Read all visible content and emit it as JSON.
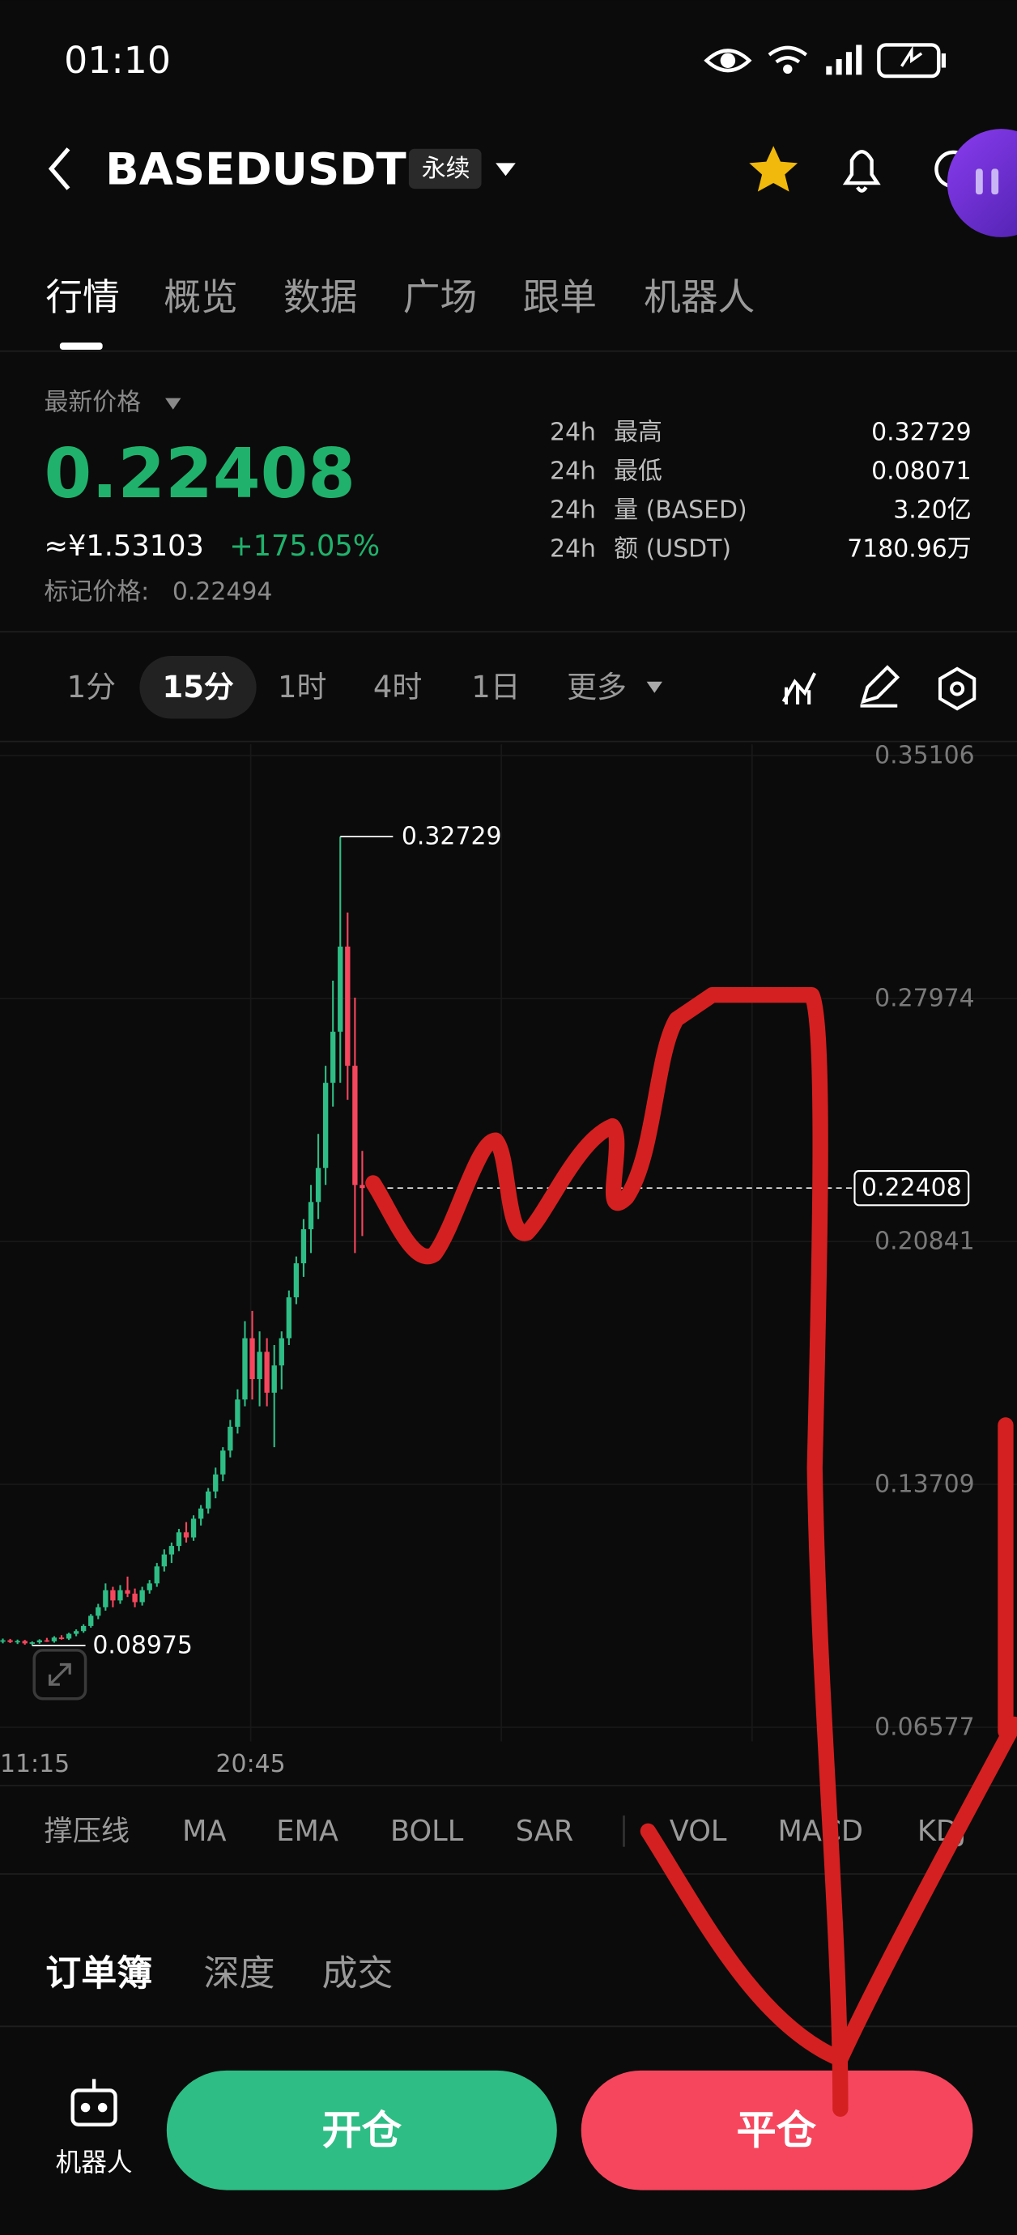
{
  "status_bar": {
    "time": "01:10"
  },
  "header": {
    "symbol": "BASEDUSDT",
    "contract_type": "永续"
  },
  "tabs": [
    "行情",
    "概览",
    "数据",
    "广场",
    "跟单",
    "机器人"
  ],
  "ticker": {
    "price_label": "最新价格",
    "price": "0.22408",
    "cny": "≈¥1.53103",
    "change": "+175.05%",
    "mark_price_label": "标记价格:",
    "mark_price": "0.22494",
    "stats": [
      {
        "period": "24h",
        "label": "最高",
        "value": "0.32729"
      },
      {
        "period": "24h",
        "label": "最低",
        "value": "0.08071"
      },
      {
        "period": "24h",
        "label": "量 (BASED)",
        "value": "3.20亿"
      },
      {
        "period": "24h",
        "label": "额 (USDT)",
        "value": "7180.96万"
      }
    ]
  },
  "intervals": {
    "items": [
      "1分",
      "15分",
      "1时",
      "4时",
      "1日",
      "更多"
    ],
    "selected": 1
  },
  "chart_data": {
    "type": "candlestick",
    "ylim": [
      0.0616,
      0.3544
    ],
    "yticks": [
      0.35106,
      0.27974,
      0.20841,
      0.13709,
      0.06577
    ],
    "x_labels": [
      "11:15",
      "20:45"
    ],
    "up_color": "#2ebd85",
    "down_color": "#f6465d",
    "last_price": 0.22408,
    "high_marker": 0.32729,
    "low_marker": 0.08975,
    "candles": [
      [
        0.091,
        0.0918,
        0.0904,
        0.0913
      ],
      [
        0.0913,
        0.0917,
        0.0905,
        0.0908
      ],
      [
        0.0908,
        0.0915,
        0.0902,
        0.0911
      ],
      [
        0.0911,
        0.0914,
        0.09,
        0.0904
      ],
      [
        0.0904,
        0.091,
        0.08975,
        0.0907
      ],
      [
        0.0907,
        0.0916,
        0.0903,
        0.0913
      ],
      [
        0.0913,
        0.092,
        0.0908,
        0.091
      ],
      [
        0.091,
        0.0925,
        0.0906,
        0.0921
      ],
      [
        0.0921,
        0.0928,
        0.0915,
        0.0918
      ],
      [
        0.0918,
        0.0935,
        0.0914,
        0.0932
      ],
      [
        0.0932,
        0.0945,
        0.0925,
        0.094
      ],
      [
        0.094,
        0.096,
        0.0935,
        0.0955
      ],
      [
        0.0955,
        0.099,
        0.095,
        0.0985
      ],
      [
        0.0985,
        0.102,
        0.0975,
        0.101
      ],
      [
        0.101,
        0.108,
        0.1,
        0.106
      ],
      [
        0.106,
        0.107,
        0.101,
        0.103
      ],
      [
        0.103,
        0.1075,
        0.102,
        0.106
      ],
      [
        0.106,
        0.11,
        0.104,
        0.105
      ],
      [
        0.105,
        0.1065,
        0.101,
        0.1025
      ],
      [
        0.1025,
        0.107,
        0.1015,
        0.106
      ],
      [
        0.106,
        0.109,
        0.105,
        0.108
      ],
      [
        0.108,
        0.114,
        0.107,
        0.113
      ],
      [
        0.113,
        0.118,
        0.1115,
        0.1165
      ],
      [
        0.1165,
        0.12,
        0.114,
        0.119
      ],
      [
        0.119,
        0.124,
        0.1175,
        0.123
      ],
      [
        0.123,
        0.126,
        0.12,
        0.1215
      ],
      [
        0.1215,
        0.128,
        0.1205,
        0.127
      ],
      [
        0.127,
        0.131,
        0.125,
        0.13
      ],
      [
        0.13,
        0.136,
        0.1285,
        0.135
      ],
      [
        0.135,
        0.142,
        0.133,
        0.14
      ],
      [
        0.14,
        0.148,
        0.138,
        0.147
      ],
      [
        0.147,
        0.156,
        0.145,
        0.154
      ],
      [
        0.154,
        0.165,
        0.152,
        0.162
      ],
      [
        0.162,
        0.185,
        0.16,
        0.18
      ],
      [
        0.18,
        0.188,
        0.162,
        0.168
      ],
      [
        0.168,
        0.182,
        0.16,
        0.176
      ],
      [
        0.176,
        0.18,
        0.16,
        0.164
      ],
      [
        0.164,
        0.178,
        0.148,
        0.172
      ],
      [
        0.172,
        0.182,
        0.165,
        0.18
      ],
      [
        0.18,
        0.194,
        0.178,
        0.192
      ],
      [
        0.192,
        0.204,
        0.19,
        0.202
      ],
      [
        0.202,
        0.215,
        0.198,
        0.212
      ],
      [
        0.212,
        0.225,
        0.205,
        0.22
      ],
      [
        0.22,
        0.24,
        0.215,
        0.23
      ],
      [
        0.23,
        0.26,
        0.225,
        0.255
      ],
      [
        0.255,
        0.285,
        0.248,
        0.27
      ],
      [
        0.27,
        0.32729,
        0.255,
        0.295
      ],
      [
        0.295,
        0.305,
        0.25,
        0.26
      ],
      [
        0.26,
        0.28,
        0.205,
        0.225
      ],
      [
        0.225,
        0.235,
        0.21,
        0.22408
      ]
    ]
  },
  "indicators": [
    "撑压线",
    "MA",
    "EMA",
    "BOLL",
    "SAR",
    "VOL",
    "MACD",
    "KDJ"
  ],
  "orderbook_tabs": [
    "订单簿",
    "深度",
    "成交"
  ],
  "bottom_bar": {
    "robot": "机器人",
    "open": "开仓",
    "close": "平仓"
  }
}
